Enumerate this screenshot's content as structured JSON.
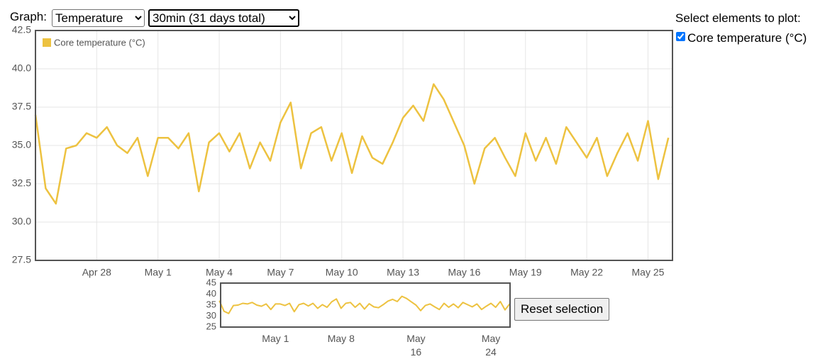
{
  "controls": {
    "graph_label": "Graph:",
    "graph_select": "Temperature",
    "range_select": "30min (31 days total)",
    "elements_heading": "Select elements to plot:",
    "element_checkbox": "Core temperature (°C)",
    "reset_button": "Reset selection"
  },
  "chart_data": [
    {
      "type": "line",
      "x": [
        115,
        115.5,
        116,
        116.5,
        117,
        117.5,
        118,
        118.5,
        119,
        119.5,
        120,
        120.5,
        121,
        121.5,
        122,
        122.5,
        123,
        123.5,
        124,
        124.5,
        125,
        125.5,
        126,
        126.5,
        127,
        127.5,
        128,
        128.5,
        129,
        129.5,
        130,
        130.5,
        131,
        131.5,
        132,
        132.5,
        133,
        133.5,
        134,
        134.5,
        135,
        135.5,
        136,
        136.5,
        137,
        137.5,
        138,
        138.5,
        139,
        139.5,
        140,
        140.5,
        141,
        141.5,
        142,
        142.5,
        143,
        143.5,
        144,
        144.5,
        145,
        145.5,
        146
      ],
      "series": [
        {
          "name": "Core temperature (°C)",
          "color": "#edc240",
          "values": [
            37.0,
            32.2,
            31.2,
            34.8,
            35.0,
            35.8,
            35.5,
            36.2,
            35.0,
            34.5,
            35.5,
            33.0,
            35.5,
            35.5,
            34.8,
            35.8,
            32.0,
            35.2,
            35.8,
            34.6,
            35.8,
            33.5,
            35.2,
            34.0,
            36.5,
            37.8,
            33.5,
            35.8,
            36.2,
            34.0,
            35.8,
            33.2,
            35.6,
            34.2,
            33.8,
            35.2,
            36.8,
            37.6,
            36.6,
            39.0,
            38.0,
            36.5,
            35.0,
            32.5,
            34.8,
            35.5,
            34.2,
            33.0,
            35.8,
            34.0,
            35.5,
            33.8,
            36.2,
            35.2,
            34.2,
            35.5,
            33.0,
            34.5,
            35.8,
            34.0,
            36.6,
            32.8,
            35.5
          ]
        }
      ],
      "xlim": [
        115,
        146.2
      ],
      "xticks": [
        {
          "value": 118,
          "label": "Apr 28"
        },
        {
          "value": 121,
          "label": "May 1"
        },
        {
          "value": 124,
          "label": "May 4"
        },
        {
          "value": 127,
          "label": "May 7"
        },
        {
          "value": 130,
          "label": "May 10"
        },
        {
          "value": 133,
          "label": "May 13"
        },
        {
          "value": 136,
          "label": "May 16"
        },
        {
          "value": 139,
          "label": "May 19"
        },
        {
          "value": 142,
          "label": "May 22"
        },
        {
          "value": 145,
          "label": "May 25"
        }
      ],
      "ylim": [
        27.5,
        42.5
      ],
      "yticks": [
        27.5,
        {
          "value": 30,
          "label": "30.0"
        },
        32.5,
        {
          "value": 35,
          "label": "35.0"
        },
        37.5,
        {
          "value": 40,
          "label": "40.0"
        },
        42.5
      ],
      "grid": true,
      "legend": "upper left"
    },
    {
      "type": "line",
      "xlim": [
        115.14,
        146.04
      ],
      "xticks": [
        {
          "value": 121,
          "label": "May 1"
        },
        {
          "value": 128,
          "label": "May 8"
        },
        {
          "value": 136,
          "label": "May 16"
        },
        {
          "value": 144,
          "label": "May 24"
        }
      ],
      "ylim": [
        25,
        45
      ],
      "yticks": [
        25,
        30,
        35,
        40,
        45
      ],
      "grid": false
    }
  ]
}
